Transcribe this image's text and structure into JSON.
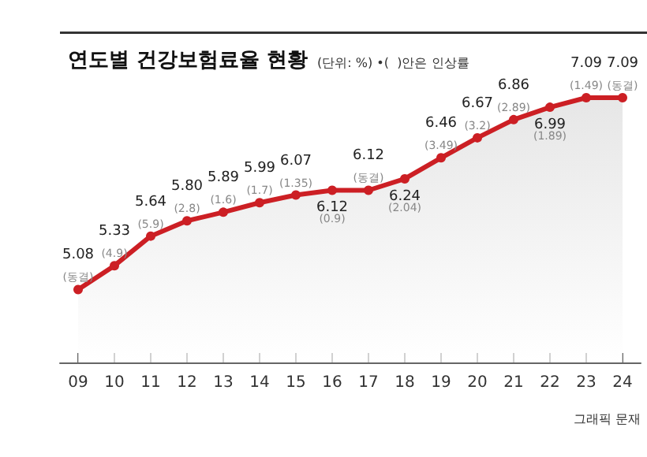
{
  "chart_data": {
    "type": "area",
    "title": "연도별 건강보험료율 현황",
    "subtitle": "(단위: %) •(  )안은 인상률",
    "categories": [
      "09",
      "10",
      "11",
      "12",
      "13",
      "14",
      "15",
      "16",
      "17",
      "18",
      "19",
      "20",
      "21",
      "22",
      "23",
      "24"
    ],
    "series": [
      {
        "color": "#cc1f24",
        "values": [
          5.08,
          5.33,
          5.64,
          5.8,
          5.89,
          5.99,
          6.07,
          6.12,
          6.12,
          6.24,
          6.46,
          6.67,
          6.86,
          6.99,
          7.09,
          7.09
        ],
        "value_labels": [
          "5.08",
          "5.33",
          "5.64",
          "5.80",
          "5.89",
          "5.99",
          "6.07",
          "6.12",
          "6.12",
          "6.24",
          "6.46",
          "6.67",
          "6.86",
          "6.99",
          "7.09",
          "7.09"
        ]
      }
    ],
    "marker": "circle",
    "tick_labels": "x",
    "grid": false,
    "annotations": [
      {
        "text": "(동결)",
        "x": "09",
        "y": 5.08
      },
      {
        "text": "(4.9)",
        "x": "10",
        "y": 5.33
      },
      {
        "text": "(5.9)",
        "x": "11",
        "y": 5.64
      },
      {
        "text": "(2.8)",
        "x": "12",
        "y": 5.8
      },
      {
        "text": "(1.6)",
        "x": "13",
        "y": 5.89
      },
      {
        "text": "(1.7)",
        "x": "14",
        "y": 5.99
      },
      {
        "text": "(1.35)",
        "x": "15",
        "y": 6.07
      },
      {
        "text": "(0.9)",
        "x": "16",
        "y": 6.12
      },
      {
        "text": "(동결)",
        "x": "17",
        "y": 6.12
      },
      {
        "text": "(2.04)",
        "x": "18",
        "y": 6.24
      },
      {
        "text": "(3.49)",
        "x": "19",
        "y": 6.46
      },
      {
        "text": "(3.2)",
        "x": "20",
        "y": 6.67
      },
      {
        "text": "(2.89)",
        "x": "21",
        "y": 6.86
      },
      {
        "text": "(1.89)",
        "x": "22",
        "y": 6.99
      },
      {
        "text": "(1.49)",
        "x": "23",
        "y": 7.09
      },
      {
        "text": "(동결)",
        "x": "24",
        "y": 7.09
      },
      "그래픽 문재"
    ]
  }
}
